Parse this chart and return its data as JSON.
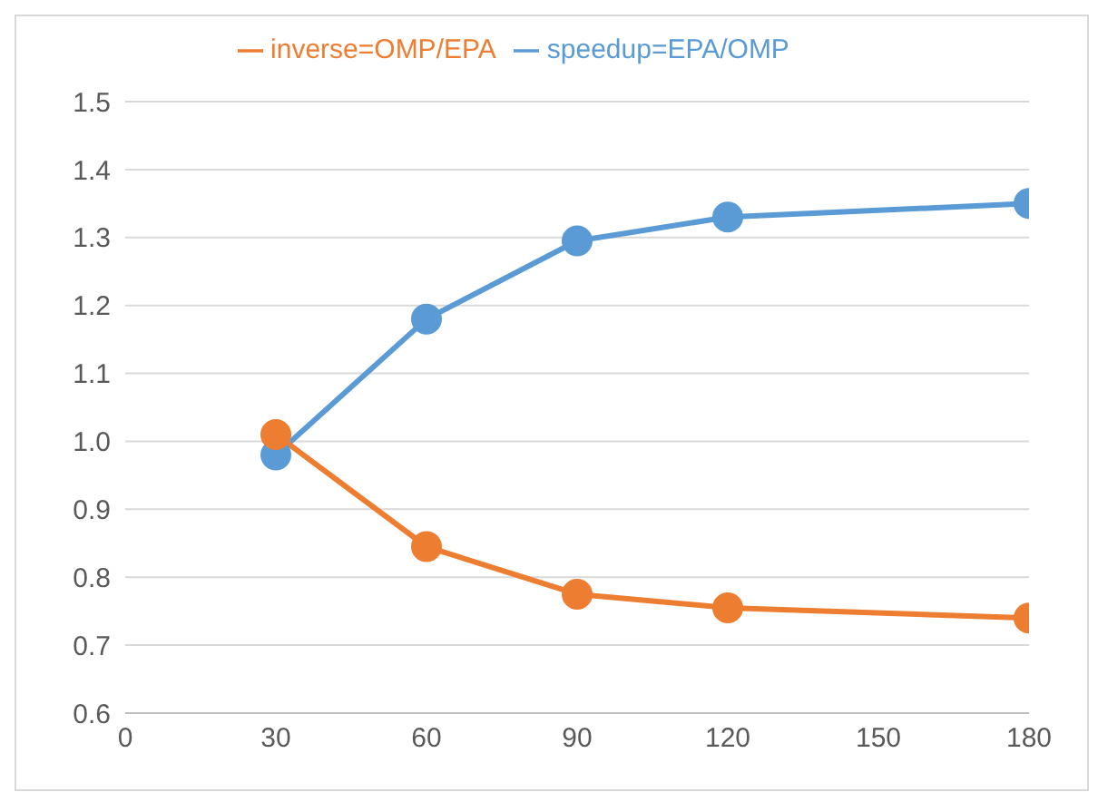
{
  "chart_data": {
    "type": "line",
    "x": [
      30,
      60,
      90,
      120,
      180
    ],
    "series": [
      {
        "name": "speedup=EPA/OMP",
        "color": "#5b9bd5",
        "values": [
          0.98,
          1.18,
          1.295,
          1.33,
          1.35
        ]
      },
      {
        "name": "inverse=OMP/EPA",
        "color": "#ed7d31",
        "values": [
          1.01,
          0.845,
          0.775,
          0.755,
          0.74
        ]
      }
    ],
    "xlim": [
      0,
      180
    ],
    "xticks": [
      0,
      30,
      60,
      90,
      120,
      150,
      180
    ],
    "ylim": [
      0.6,
      1.5
    ],
    "yticks": [
      {
        "value": 0.6,
        "label": "0.6"
      },
      {
        "value": 0.7,
        "label": "0.7"
      },
      {
        "value": 0.8,
        "label": "0.8"
      },
      {
        "value": 0.9,
        "label": "0.9"
      },
      {
        "value": 1.0,
        "label": "1.0"
      },
      {
        "value": 1.1,
        "label": "1.1"
      },
      {
        "value": 1.2,
        "label": "1.2"
      },
      {
        "value": 1.3,
        "label": "1.3"
      },
      {
        "value": 1.4,
        "label": "1.4"
      },
      {
        "value": 1.5,
        "label": "1.5"
      }
    ],
    "grid": "y",
    "legend": "top",
    "marker": "circle",
    "line_style": "solid"
  }
}
